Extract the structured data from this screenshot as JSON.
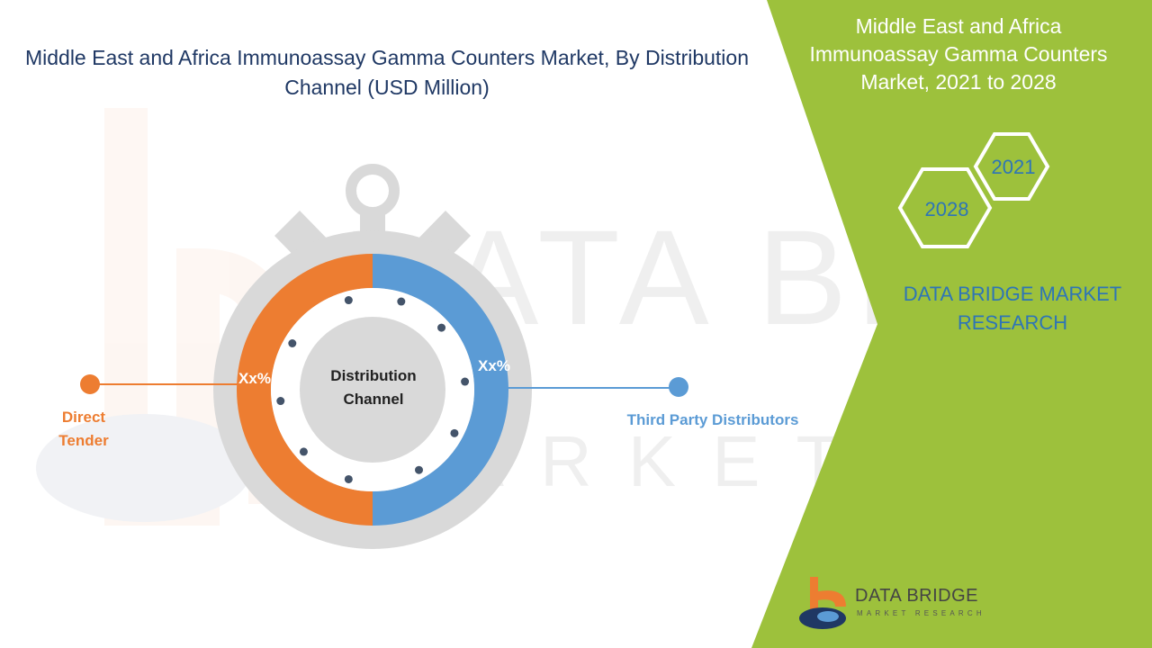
{
  "title": "Middle East and Africa Immunoassay Gamma Counters Market, By Distribution Channel (USD Million)",
  "side_panel": {
    "title": "Middle East and Africa Immunoassay Gamma Counters Market, 2021 to 2028",
    "hex_years": [
      "2021",
      "2028"
    ],
    "brand": "DATA BRIDGE MARKET RESEARCH"
  },
  "logo": {
    "name": "DATA BRIDGE",
    "tagline": "MARKET RESEARCH"
  },
  "colors": {
    "orange": "#ed7d31",
    "blue": "#5b9bd5",
    "green": "#9dc13c",
    "gray": "#d9d9d9",
    "title_navy": "#1f3864"
  },
  "chart_data": {
    "type": "pie",
    "title": "Middle East and Africa Immunoassay Gamma Counters Market, By Distribution Channel (USD Million)",
    "center_label": "Distribution Channel",
    "categories": [
      "Direct Tender",
      "Third Party Distributors"
    ],
    "values": [
      50,
      50
    ],
    "labels": [
      "Xx%",
      "Xx%"
    ],
    "colors": [
      "#ed7d31",
      "#5b9bd5"
    ]
  }
}
